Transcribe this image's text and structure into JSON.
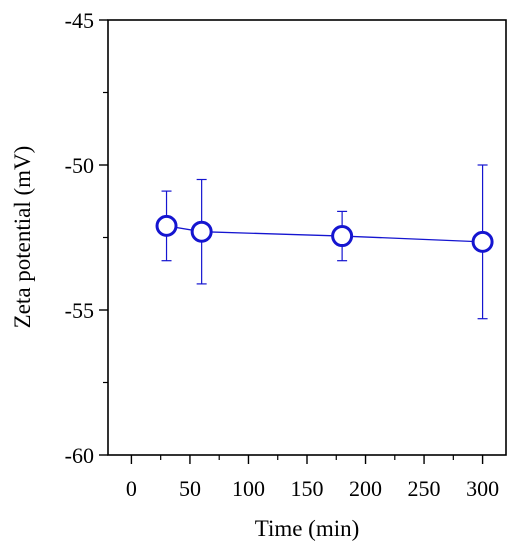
{
  "chart_data": {
    "type": "scatter",
    "xlabel": "Time (min)",
    "ylabel": "Zeta potential (mV)",
    "xlim": [
      -20,
      320
    ],
    "ylim": [
      -60,
      -45
    ],
    "xticks": [
      0,
      50,
      100,
      150,
      200,
      250,
      300
    ],
    "yticks": [
      -45,
      -50,
      -55,
      -60
    ],
    "xtick_labels": [
      "0",
      "50",
      "100",
      "150",
      "200",
      "250",
      "300"
    ],
    "ytick_labels": [
      "-45",
      "-50",
      "-55",
      "-60"
    ],
    "grid": false,
    "line_color": "#1515d0",
    "marker": "open-circle",
    "points": [
      {
        "x": 30,
        "y": -52.1,
        "err_high": -50.9,
        "err_low": -53.3
      },
      {
        "x": 60,
        "y": -52.3,
        "err_high": -50.5,
        "err_low": -54.1
      },
      {
        "x": 180,
        "y": -52.45,
        "err_high": -51.6,
        "err_low": -53.3
      },
      {
        "x": 300,
        "y": -52.65,
        "err_high": -50.0,
        "err_low": -55.3
      }
    ]
  }
}
